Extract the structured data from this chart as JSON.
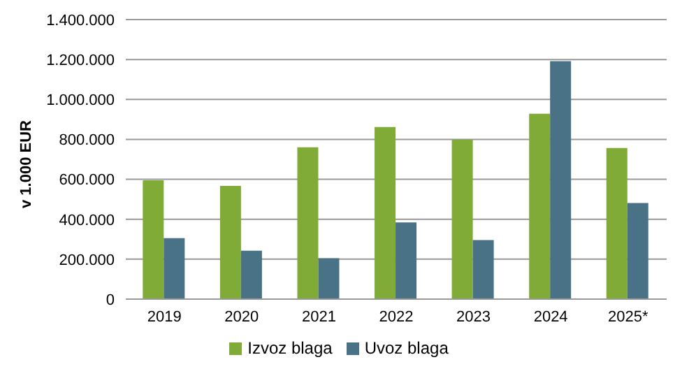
{
  "chart_data": {
    "type": "bar",
    "ylabel": "v 1.000 EUR",
    "categories": [
      "2019",
      "2020",
      "2021",
      "2022",
      "2023",
      "2024",
      "2025*"
    ],
    "series": [
      {
        "name": "Izvoz blaga",
        "color": "#80ab37",
        "values": [
          595000,
          567000,
          760000,
          862000,
          799000,
          928000,
          757000
        ]
      },
      {
        "name": "Uvoz blaga",
        "color": "#4a7287",
        "values": [
          305000,
          242000,
          205000,
          384000,
          296000,
          1192000,
          481000
        ]
      }
    ],
    "ylim": [
      0,
      1400000
    ],
    "yticks": [
      {
        "value": 0,
        "label": "0"
      },
      {
        "value": 200000,
        "label": "200.000"
      },
      {
        "value": 400000,
        "label": "400.000"
      },
      {
        "value": 600000,
        "label": "600.000"
      },
      {
        "value": 800000,
        "label": "800.000"
      },
      {
        "value": 1000000,
        "label": "1.000.000"
      },
      {
        "value": 1200000,
        "label": "1.200.000"
      },
      {
        "value": 1400000,
        "label": "1.400.000"
      }
    ],
    "grid": "y",
    "legend": "bottom"
  }
}
